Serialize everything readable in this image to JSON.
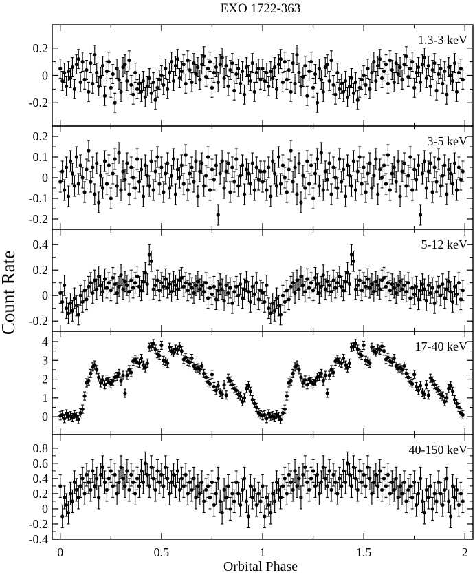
{
  "chart_data": {
    "type": "scatter",
    "title": "EXO 1722-363",
    "xlabel": "Orbital Phase",
    "ylabel": "Count Rate",
    "xlim": [
      -0.04,
      2.04
    ],
    "x_ticks": [
      "0",
      "0.5",
      "1",
      "1.5",
      "2"
    ],
    "error_bars": true,
    "marker": "filled-circle",
    "color": "#000000",
    "phase_bins": 100,
    "phase_repeat": 2,
    "phase_spacing": 0.01,
    "panels": [
      {
        "name": "1.3-3 keV",
        "ylim": [
          -0.37,
          0.37
        ],
        "y_ticks": [
          {
            "label": "0.2",
            "value": 0.2
          },
          {
            "label": "0",
            "value": 0
          },
          {
            "label": "-0.2",
            "value": -0.2
          }
        ],
        "err": 0.07,
        "values": [
          0.05,
          -0.04,
          0.02,
          -0.08,
          0.03,
          -0.02,
          0.06,
          -0.1,
          0.08,
          0.12,
          -0.05,
          0.1,
          -0.03,
          0.04,
          -0.12,
          0.09,
          -0.06,
          0.15,
          0.02,
          -0.08,
          -0.01,
          0.07,
          -0.15,
          0.03,
          0.1,
          -0.09,
          0.01,
          -0.2,
          0.05,
          -0.03,
          -0.12,
          0.06,
          0.08,
          -0.04,
          0.11,
          -0.07,
          -0.14,
          0.02,
          -0.1,
          -0.06,
          -0.12,
          -0.04,
          -0.16,
          -0.08,
          -0.02,
          -0.13,
          -0.05,
          -0.18,
          -0.09,
          -0.03,
          0.0,
          -0.07,
          0.05,
          -0.1,
          0.02,
          0.1,
          -0.04,
          0.07,
          0.12,
          -0.02,
          0.03,
          0.08,
          -0.06,
          0.11,
          0.04,
          -0.05,
          0.09,
          0.01,
          0.06,
          -0.03,
          0.08,
          0.14,
          -0.01,
          0.05,
          0.1,
          -0.09,
          0.02,
          0.06,
          -0.05,
          0.08,
          0.13,
          -0.02,
          0.07,
          -0.08,
          0.04,
          0.09,
          -0.11,
          0.01,
          0.05,
          -0.06,
          0.03,
          -0.14,
          0.06,
          0.0,
          -0.04,
          0.09,
          -0.12,
          0.02,
          0.05,
          -0.03
        ]
      },
      {
        "name": "3-5 keV",
        "ylim": [
          -0.25,
          0.25
        ],
        "y_ticks": [
          {
            "label": "0.2",
            "value": 0.2
          },
          {
            "label": "0.1",
            "value": 0.1
          },
          {
            "label": "0",
            "value": 0
          },
          {
            "label": "-0.1",
            "value": -0.1
          },
          {
            "label": "-0.2",
            "value": -0.2
          }
        ],
        "err": 0.05,
        "values": [
          -0.02,
          0.03,
          -0.06,
          0.05,
          -0.09,
          0.08,
          0.02,
          -0.04,
          0.1,
          -0.03,
          0.06,
          0.0,
          -0.07,
          0.04,
          0.13,
          -0.02,
          0.05,
          -0.08,
          0.07,
          -0.12,
          0.01,
          -0.05,
          0.08,
          -0.03,
          0.06,
          -0.1,
          0.02,
          0.09,
          -0.04,
          0.12,
          -0.06,
          0.03,
          -0.01,
          0.07,
          -0.08,
          0.05,
          0.0,
          -0.05,
          0.09,
          -0.02,
          0.04,
          -0.09,
          0.06,
          0.01,
          -0.04,
          0.08,
          -0.06,
          0.03,
          0.1,
          -0.03,
          0.05,
          -0.07,
          0.02,
          0.07,
          -0.05,
          0.01,
          0.09,
          -0.08,
          0.04,
          0.0,
          0.06,
          -0.03,
          0.11,
          -0.06,
          0.02,
          0.05,
          -0.02,
          0.08,
          -0.09,
          0.03,
          0.07,
          -0.04,
          0.01,
          0.1,
          -0.06,
          0.04,
          -0.01,
          0.06,
          -0.18,
          0.02,
          0.08,
          -0.05,
          0.03,
          0.07,
          -0.07,
          0.05,
          -0.02,
          0.09,
          -0.04,
          0.01,
          0.06,
          -0.08,
          0.04,
          0.02,
          -0.03,
          0.07,
          -0.06,
          0.05,
          -0.01,
          0.03
        ]
      },
      {
        "name": "5-12 keV",
        "ylim": [
          -0.28,
          0.52
        ],
        "y_ticks": [
          {
            "label": "0.4",
            "value": 0.4
          },
          {
            "label": "0.2",
            "value": 0.2
          },
          {
            "label": "0",
            "value": 0
          },
          {
            "label": "-0.2",
            "value": -0.2
          }
        ],
        "err": 0.08,
        "values": [
          0.02,
          -0.05,
          0.08,
          -0.1,
          -0.14,
          -0.06,
          -0.12,
          -0.02,
          -0.08,
          -0.15,
          0.0,
          -0.05,
          0.04,
          -0.03,
          0.07,
          0.1,
          0.02,
          0.12,
          0.05,
          0.15,
          0.08,
          0.03,
          0.13,
          0.06,
          0.1,
          0.04,
          0.14,
          0.09,
          0.02,
          0.07,
          0.16,
          0.05,
          0.11,
          0.08,
          0.03,
          0.12,
          0.06,
          0.1,
          0.15,
          0.07,
          0.04,
          0.11,
          0.18,
          0.09,
          0.32,
          0.27,
          0.05,
          0.08,
          0.12,
          0.04,
          0.1,
          0.07,
          0.13,
          0.06,
          0.09,
          0.03,
          0.11,
          0.08,
          0.05,
          0.12,
          0.14,
          0.07,
          0.1,
          0.04,
          0.09,
          0.06,
          0.02,
          0.08,
          0.11,
          0.05,
          0.08,
          0.03,
          0.1,
          -0.02,
          0.06,
          0.01,
          0.07,
          -0.03,
          0.04,
          0.09,
          0.05,
          -0.04,
          0.08,
          0.02,
          0.06,
          -0.06,
          0.03,
          0.07,
          0.0,
          0.09,
          -0.02,
          0.05,
          0.11,
          0.03,
          -0.05,
          0.07,
          0.01,
          0.1,
          -0.03,
          0.04
        ]
      },
      {
        "name": "17-40 keV",
        "ylim": [
          -0.95,
          4.55
        ],
        "y_ticks": [
          {
            "label": "4",
            "value": 4
          },
          {
            "label": "3",
            "value": 3
          },
          {
            "label": "2",
            "value": 2
          },
          {
            "label": "1",
            "value": 1
          },
          {
            "label": "0",
            "value": 0
          }
        ],
        "err": 0.22,
        "values": [
          0.05,
          0.1,
          -0.1,
          0.15,
          0.0,
          0.05,
          -0.05,
          0.1,
          0.0,
          -0.15,
          0.2,
          0.4,
          1.1,
          1.8,
          1.9,
          2.3,
          2.65,
          2.75,
          2.5,
          2.1,
          1.8,
          1.95,
          1.7,
          2.0,
          1.85,
          1.75,
          1.9,
          2.1,
          2.15,
          2.3,
          1.9,
          2.2,
          1.25,
          2.2,
          2.5,
          2.35,
          2.95,
          3.05,
          2.9,
          2.85,
          3.1,
          2.75,
          2.6,
          2.85,
          3.7,
          3.75,
          3.9,
          3.6,
          3.35,
          3.25,
          3.8,
          3.0,
          2.95,
          2.85,
          3.7,
          3.5,
          3.4,
          3.6,
          3.55,
          3.75,
          3.5,
          3.05,
          3.15,
          2.95,
          2.9,
          3.1,
          2.7,
          2.55,
          2.6,
          2.5,
          2.7,
          2.3,
          2.1,
          1.85,
          1.75,
          2.25,
          1.6,
          1.4,
          1.65,
          1.3,
          1.2,
          1.7,
          1.15,
          2.05,
          1.9,
          1.7,
          1.5,
          1.4,
          1.2,
          1.1,
          0.8,
          1.0,
          1.5,
          1.65,
          1.35,
          0.9,
          0.7,
          0.5,
          0.2,
          0.1
        ]
      },
      {
        "name": "40-150 keV",
        "ylim": [
          -0.4,
          0.98
        ],
        "y_ticks": [
          {
            "label": "0.8",
            "value": 0.8
          },
          {
            "label": "0.6",
            "value": 0.6
          },
          {
            "label": "0.4",
            "value": 0.4
          },
          {
            "label": "0.2",
            "value": 0.2
          },
          {
            "label": "0",
            "value": 0
          },
          {
            "label": "-0.2",
            "value": -0.2
          },
          {
            "label": "-0.4",
            "value": -0.4
          }
        ],
        "err": 0.15,
        "values": [
          0.3,
          -0.1,
          0.15,
          0.05,
          -0.05,
          0.2,
          0.1,
          0.35,
          0.25,
          0.15,
          0.3,
          0.4,
          0.2,
          0.45,
          0.35,
          0.25,
          0.5,
          0.3,
          0.4,
          0.15,
          0.45,
          0.55,
          0.35,
          0.25,
          0.4,
          0.5,
          0.3,
          0.45,
          0.2,
          0.35,
          0.55,
          0.4,
          0.3,
          0.5,
          0.25,
          0.45,
          0.35,
          0.2,
          0.4,
          0.3,
          0.5,
          0.35,
          0.6,
          0.45,
          0.3,
          0.55,
          0.4,
          0.25,
          0.5,
          0.35,
          0.45,
          0.3,
          0.55,
          0.4,
          0.2,
          0.35,
          0.45,
          0.3,
          0.5,
          0.25,
          0.4,
          0.3,
          0.45,
          0.2,
          0.35,
          0.25,
          0.4,
          0.15,
          0.3,
          0.2,
          0.35,
          0.1,
          0.25,
          0.3,
          0.15,
          0.35,
          0.05,
          0.2,
          0.4,
          0.1,
          -0.05,
          0.25,
          0.15,
          0.3,
          0.0,
          0.2,
          0.1,
          0.35,
          0.2,
          0.05,
          0.25,
          0.4,
          0.1,
          -0.1,
          0.3,
          0.15,
          0.25,
          0.05,
          0.2,
          0.1
        ]
      }
    ]
  }
}
